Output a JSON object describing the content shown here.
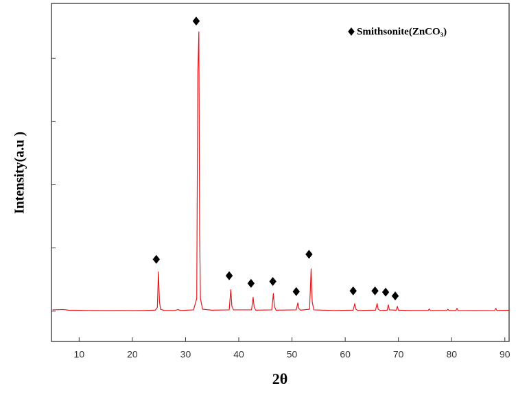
{
  "chart_data": {
    "type": "line",
    "x_label": "2θ",
    "y_label": "Intensity(a.u )",
    "x": [
      5,
      7,
      8,
      10,
      12,
      15,
      18,
      20,
      22,
      24.3,
      24.7,
      24.9,
      25.1,
      25.3,
      26,
      28,
      28.6,
      29,
      31.5,
      32.1,
      32.3,
      32.5,
      32.65,
      32.8,
      33.2,
      35,
      38.2,
      38.5,
      38.7,
      39,
      42.4,
      42.7,
      42.9,
      43.2,
      46.2,
      46.5,
      46.7,
      47,
      50.8,
      51.1,
      51.3,
      51.6,
      53.3,
      53.6,
      53.8,
      54.1,
      58,
      61.5,
      61.8,
      62,
      62.4,
      65.7,
      66,
      66.2,
      66.6,
      67.9,
      68.1,
      68.3,
      69.6,
      69.8,
      70,
      72,
      75.6,
      75.8,
      76,
      79.1,
      79.3,
      79.5,
      80.8,
      81,
      81.2,
      84,
      88.1,
      88.3,
      88.5,
      90,
      90.8
    ],
    "values": [
      20,
      25,
      15,
      12,
      10,
      8,
      10,
      8,
      10,
      15,
      60,
      620,
      150,
      30,
      10,
      10,
      25,
      10,
      20,
      200,
      3740,
      4420,
      1200,
      200,
      30,
      15,
      20,
      340,
      80,
      20,
      20,
      220,
      60,
      15,
      20,
      280,
      70,
      15,
      20,
      130,
      40,
      15,
      30,
      670,
      150,
      20,
      10,
      15,
      120,
      30,
      10,
      15,
      120,
      30,
      10,
      15,
      100,
      20,
      15,
      75,
      15,
      10,
      10,
      35,
      10,
      10,
      30,
      10,
      10,
      45,
      10,
      8,
      10,
      45,
      10,
      12,
      12
    ],
    "color": "#e8161b",
    "markers": {
      "name": "Smithsonite(ZnCO₃)",
      "marker": "diamond",
      "color": "#000000",
      "x": [
        24.5,
        32.0,
        38.2,
        42.3,
        46.4,
        50.8,
        53.2,
        61.5,
        65.6,
        67.6,
        69.4
      ],
      "values": [
        820,
        4590,
        560,
        440,
        470,
        310,
        900,
        320,
        320,
        300,
        240
      ]
    },
    "xlim": [
      4.8,
      90.8
    ],
    "xticks": [
      10,
      20,
      30,
      40,
      50,
      60,
      70,
      80,
      90
    ],
    "ylim": [
      -480,
      4870
    ],
    "yticks": [
      0,
      1000,
      2000,
      3000,
      4000
    ]
  }
}
